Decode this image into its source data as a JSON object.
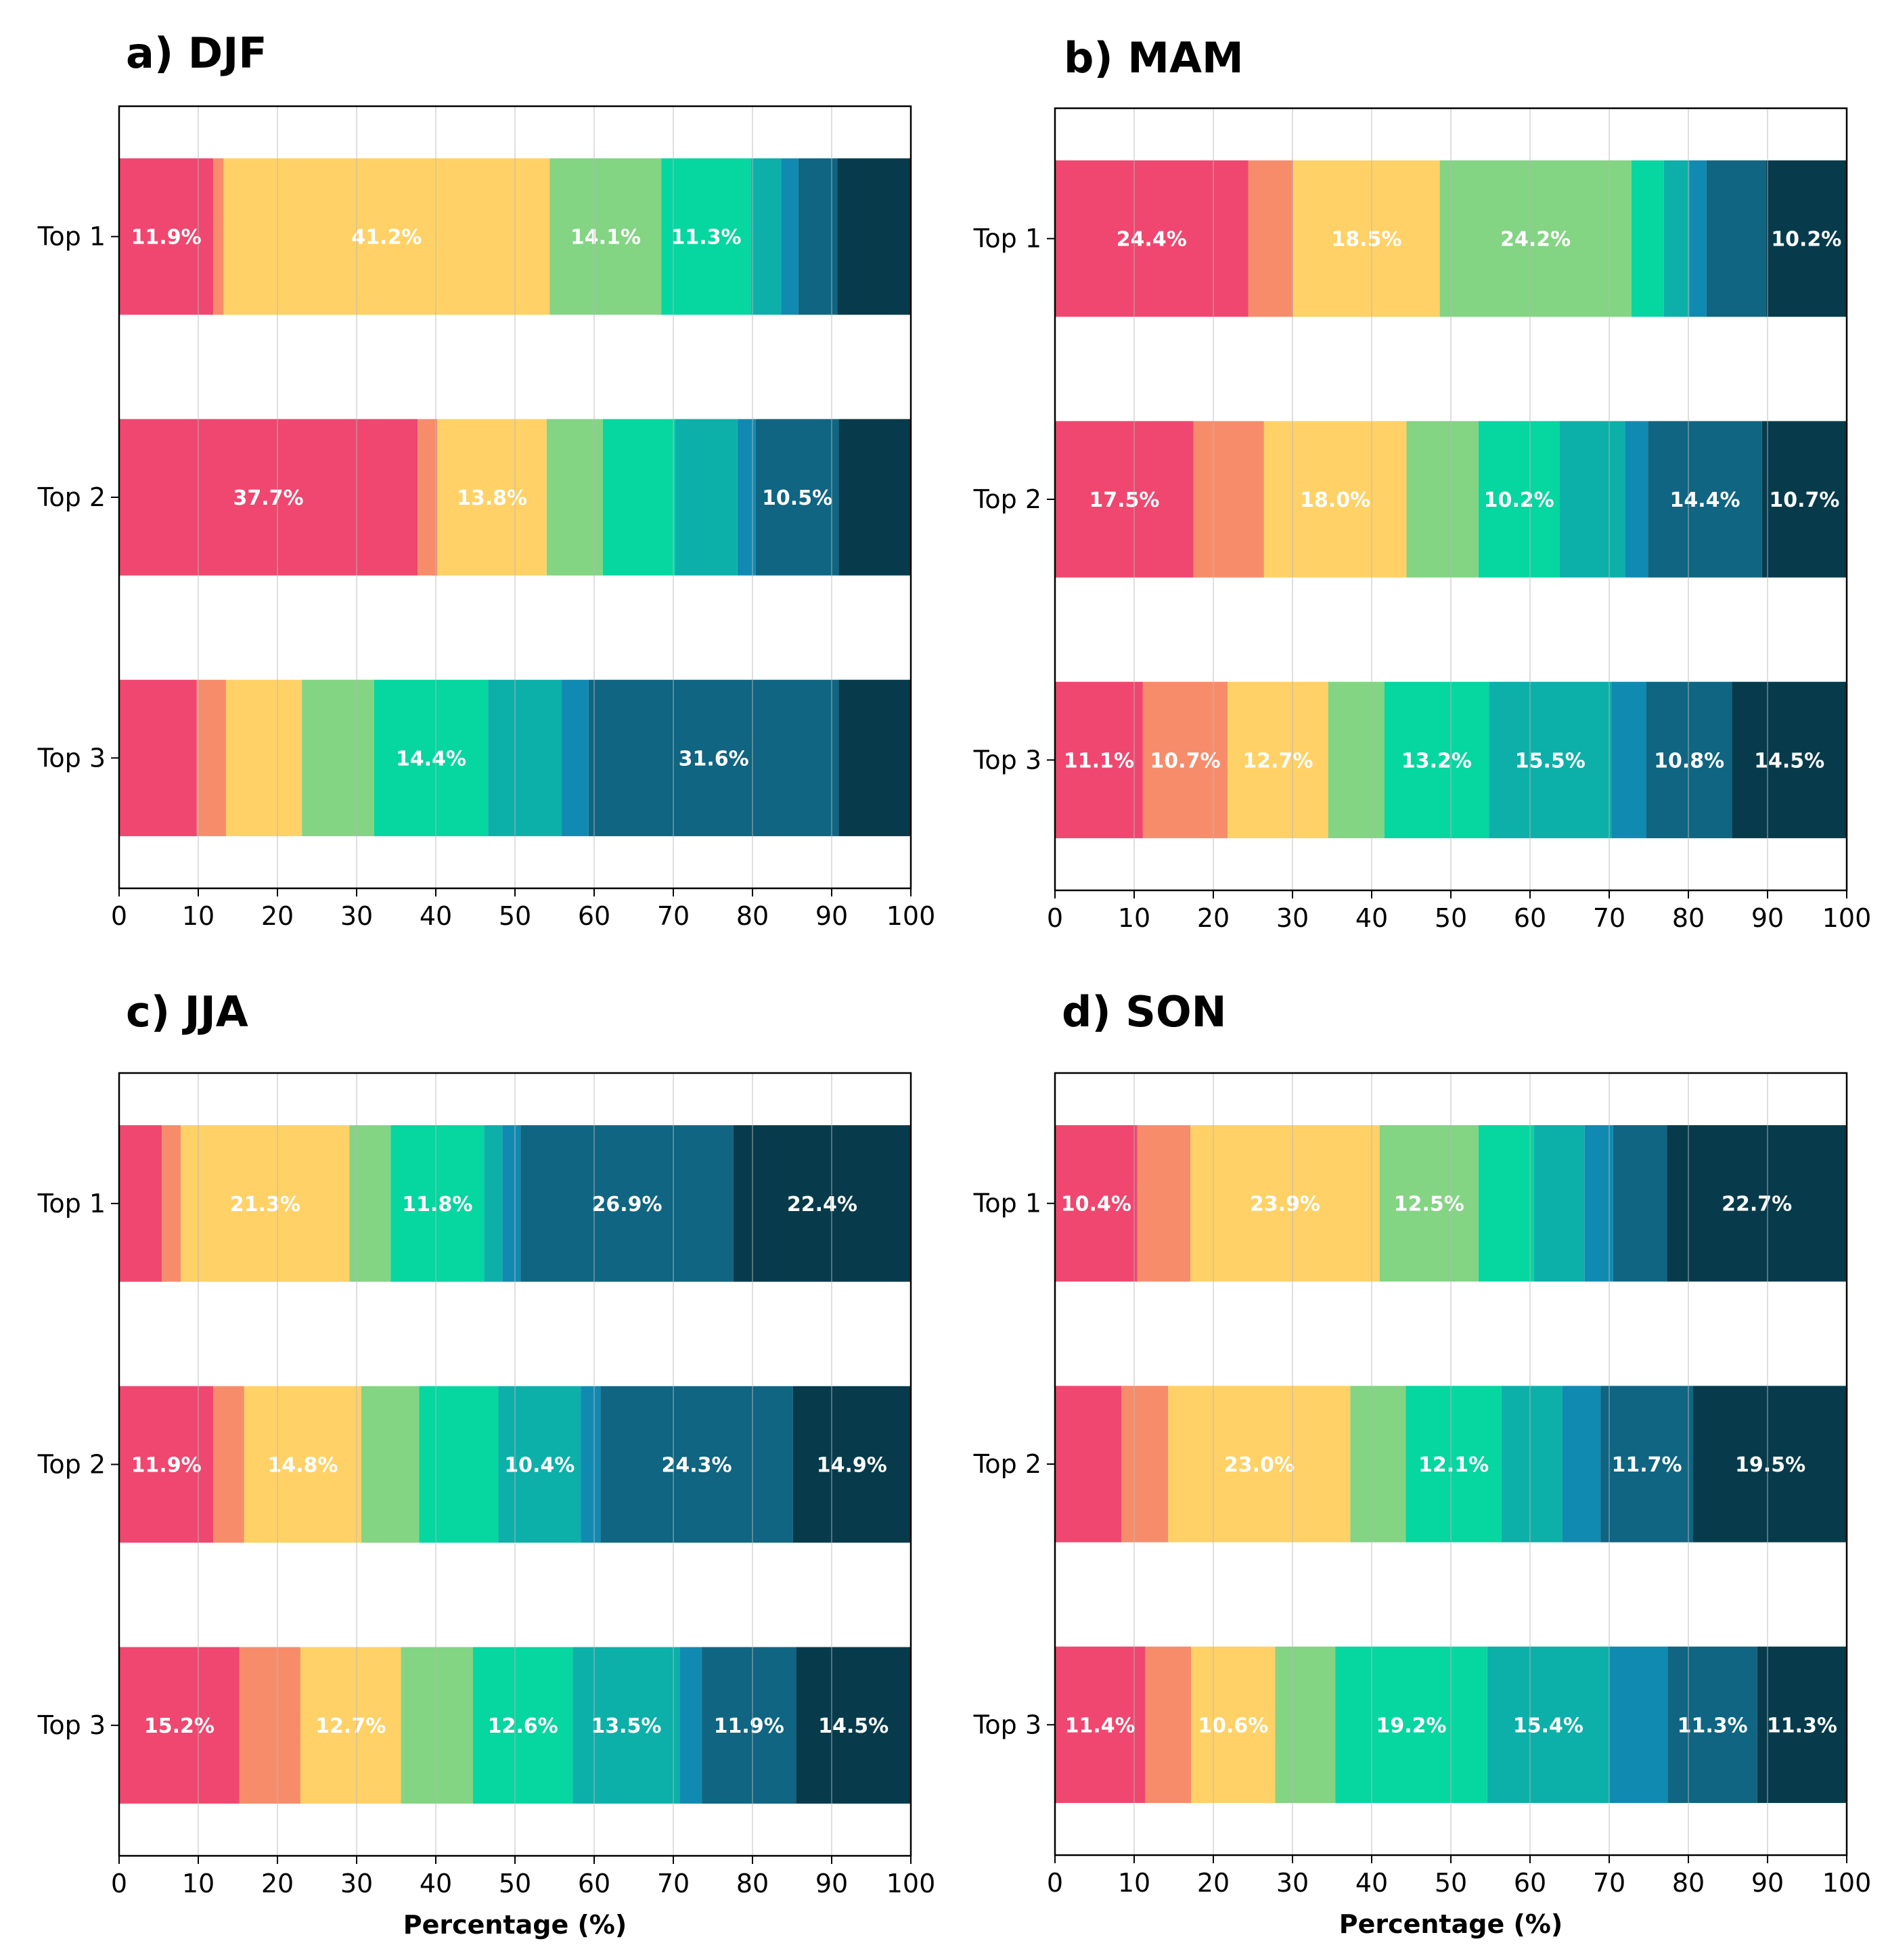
{
  "chart_data": [
    {
      "type": "bar",
      "orientation": "horizontal",
      "stacked": true,
      "title": "a) DJF",
      "categories": [
        "Top 1",
        "Top 2",
        "Top 3"
      ],
      "xlabel": "",
      "xlim": [
        0,
        100
      ],
      "xticks": [
        0,
        10,
        20,
        30,
        40,
        50,
        60,
        70,
        80,
        90,
        100
      ],
      "grid": "vertical",
      "bars": [
        {
          "category": "Top 1",
          "segments": [
            11.9,
            1.3,
            41.2,
            14.1,
            11.3,
            3.8,
            2.2,
            4.9,
            9.3
          ],
          "labels": [
            "11.9%",
            "",
            "41.2%",
            "14.1%",
            "11.3%",
            "",
            "",
            "",
            ""
          ]
        },
        {
          "category": "Top 2",
          "segments": [
            37.7,
            2.5,
            13.8,
            7.1,
            9.1,
            7.9,
            2.3,
            10.5,
            9.1
          ],
          "labels": [
            "37.7%",
            "",
            "13.8%",
            "",
            "",
            "",
            "",
            "10.5%",
            ""
          ]
        },
        {
          "category": "Top 3",
          "segments": [
            9.8,
            3.7,
            9.6,
            9.1,
            14.4,
            9.3,
            3.4,
            31.6,
            9.1
          ],
          "labels": [
            "",
            "",
            "",
            "",
            "14.4%",
            "",
            "",
            "31.6%",
            ""
          ]
        }
      ]
    },
    {
      "type": "bar",
      "orientation": "horizontal",
      "stacked": true,
      "title": "b) MAM",
      "categories": [
        "Top 1",
        "Top 2",
        "Top 3"
      ],
      "xlabel": "",
      "xlim": [
        0,
        100
      ],
      "xticks": [
        0,
        10,
        20,
        30,
        40,
        50,
        60,
        70,
        80,
        90,
        100
      ],
      "grid": "vertical",
      "bars": [
        {
          "category": "Top 1",
          "segments": [
            24.4,
            5.7,
            18.5,
            24.2,
            4.1,
            3.2,
            2.2,
            7.5,
            10.2
          ],
          "labels": [
            "24.4%",
            "",
            "18.5%",
            "24.2%",
            "",
            "",
            "",
            "",
            "10.2%"
          ]
        },
        {
          "category": "Top 2",
          "segments": [
            17.5,
            8.9,
            18.0,
            9.1,
            10.2,
            8.3,
            2.9,
            14.4,
            10.7
          ],
          "labels": [
            "17.5%",
            "",
            "18.0%",
            "",
            "10.2%",
            "",
            "",
            "14.4%",
            "10.7%"
          ]
        },
        {
          "category": "Top 3",
          "segments": [
            11.1,
            10.7,
            12.7,
            7.1,
            13.2,
            15.5,
            4.4,
            10.8,
            14.5
          ],
          "labels": [
            "11.1%",
            "10.7%",
            "12.7%",
            "",
            "13.2%",
            "15.5%",
            "",
            "10.8%",
            "14.5%"
          ]
        }
      ]
    },
    {
      "type": "bar",
      "orientation": "horizontal",
      "stacked": true,
      "title": "c) JJA",
      "categories": [
        "Top 1",
        "Top 2",
        "Top 3"
      ],
      "xlabel": "Percentage (%)",
      "xlim": [
        0,
        100
      ],
      "xticks": [
        0,
        10,
        20,
        30,
        40,
        50,
        60,
        70,
        80,
        90,
        100
      ],
      "grid": "vertical",
      "bars": [
        {
          "category": "Top 1",
          "segments": [
            5.4,
            2.4,
            21.3,
            5.2,
            11.8,
            2.3,
            2.3,
            26.9,
            22.4
          ],
          "labels": [
            "",
            "",
            "21.3%",
            "",
            "11.8%",
            "",
            "",
            "26.9%",
            "22.4%"
          ]
        },
        {
          "category": "Top 2",
          "segments": [
            11.9,
            3.9,
            14.8,
            7.3,
            10.0,
            10.4,
            2.5,
            24.3,
            14.9
          ],
          "labels": [
            "11.9%",
            "",
            "14.8%",
            "",
            "",
            "10.4%",
            "",
            "24.3%",
            "14.9%"
          ]
        },
        {
          "category": "Top 3",
          "segments": [
            15.2,
            7.7,
            12.7,
            9.1,
            12.6,
            13.5,
            2.8,
            11.9,
            14.5
          ],
          "labels": [
            "15.2%",
            "",
            "12.7%",
            "",
            "12.6%",
            "13.5%",
            "",
            "11.9%",
            "14.5%"
          ]
        }
      ]
    },
    {
      "type": "bar",
      "orientation": "horizontal",
      "stacked": true,
      "title": "d) SON",
      "categories": [
        "Top 1",
        "Top 2",
        "Top 3"
      ],
      "xlabel": "Percentage (%)",
      "xlim": [
        0,
        100
      ],
      "xticks": [
        0,
        10,
        20,
        30,
        40,
        50,
        60,
        70,
        80,
        90,
        100
      ],
      "grid": "vertical",
      "bars": [
        {
          "category": "Top 1",
          "segments": [
            10.4,
            6.7,
            23.9,
            12.5,
            7.0,
            6.4,
            3.6,
            6.8,
            22.7
          ],
          "labels": [
            "10.4%",
            "",
            "23.9%",
            "12.5%",
            "",
            "",
            "",
            "",
            "22.7%"
          ]
        },
        {
          "category": "Top 2",
          "segments": [
            8.4,
            5.9,
            23.0,
            7.0,
            12.1,
            7.7,
            4.8,
            11.7,
            19.5
          ],
          "labels": [
            "",
            "",
            "23.0%",
            "",
            "12.1%",
            "",
            "",
            "11.7%",
            "19.5%"
          ]
        },
        {
          "category": "Top 3",
          "segments": [
            11.4,
            5.8,
            10.6,
            7.6,
            19.2,
            15.4,
            7.4,
            11.3,
            11.3
          ],
          "labels": [
            "11.4%",
            "",
            "10.6%",
            "",
            "19.2%",
            "15.4%",
            "",
            "11.3%",
            "11.3%"
          ]
        }
      ]
    }
  ],
  "colors": [
    "#EF476F",
    "#F78C6B",
    "#FFD166",
    "#83D483",
    "#06D6A0",
    "#0CB0A9",
    "#118AB2",
    "#0F6582",
    "#073B4C"
  ]
}
